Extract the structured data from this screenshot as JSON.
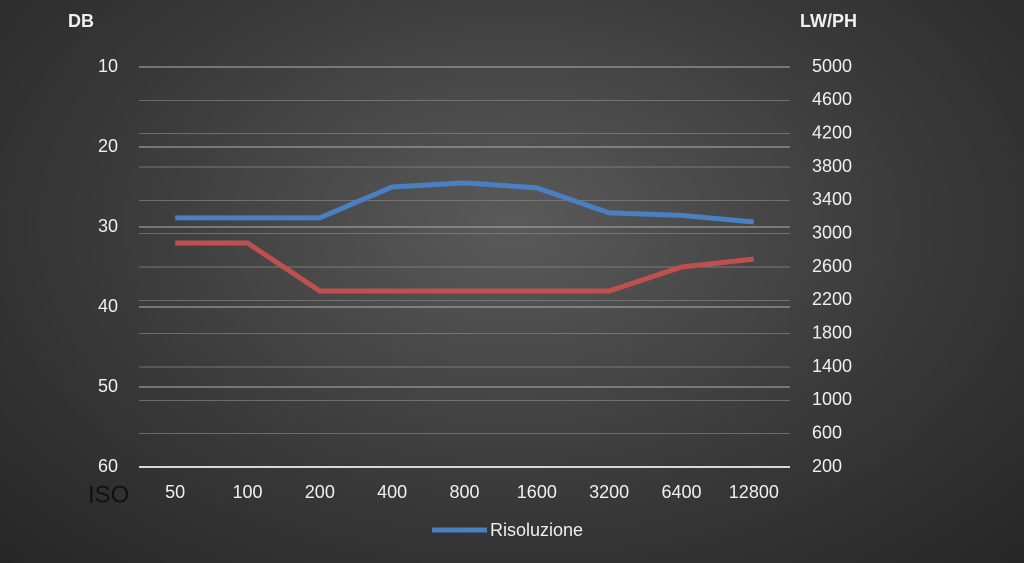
{
  "chart_data": {
    "type": "line",
    "y_label": "DB",
    "y2_label": "LW/PH",
    "x_label": "ISO",
    "categories": [
      "50",
      "100",
      "200",
      "400",
      "800",
      "1600",
      "3200",
      "6400",
      "12800"
    ],
    "series": [
      {
        "name": "Risoluzione",
        "color": "#4a7fc1",
        "axis": "y2",
        "values": [
          3190,
          3190,
          3190,
          3560,
          3610,
          3550,
          3250,
          3220,
          3140
        ]
      },
      {
        "color": "#c0504d",
        "values": [
          32,
          32,
          38,
          38,
          38,
          38,
          38,
          35,
          34
        ]
      }
    ],
    "ylim": [
      10,
      60
    ],
    "y_reversed": true,
    "yticks": [
      10,
      20,
      30,
      40,
      50,
      60
    ],
    "y2lim": [
      200,
      5000
    ],
    "y2ticks": [
      200,
      600,
      1000,
      1400,
      1800,
      2200,
      2600,
      3000,
      3400,
      3800,
      4200,
      4600,
      5000
    ],
    "grid": true,
    "legend": "bottom"
  }
}
